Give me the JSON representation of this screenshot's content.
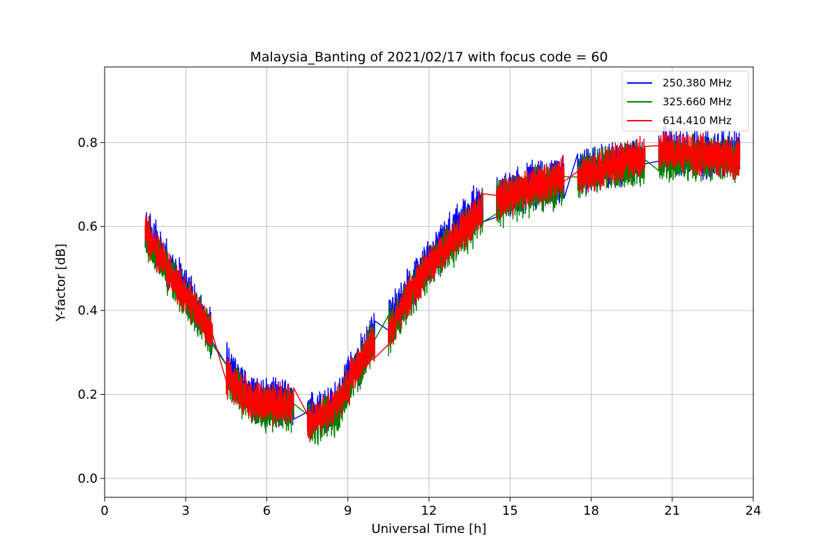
{
  "chart_data": {
    "type": "line",
    "title": "Malaysia_Banting of 2021/02/17 with focus code = 60",
    "xlabel": "Universal Time [h]",
    "ylabel": "Y-factor [dB]",
    "xlim": [
      0,
      24
    ],
    "ylim": [
      -0.045,
      0.98
    ],
    "xticks": [
      "0",
      "3",
      "6",
      "9",
      "12",
      "15",
      "18",
      "21",
      "24"
    ],
    "yticks": [
      "0.0",
      "0.2",
      "0.4",
      "0.6",
      "0.8"
    ],
    "grid": true,
    "legend_position": "top-right",
    "series": [
      {
        "name": "250.380 MHz",
        "color": "#0000ff",
        "noise": 0.045,
        "segments": [
          {
            "x": [
              1.5,
              2.5,
              3.5,
              4.0
            ],
            "y": [
              0.6,
              0.49,
              0.4,
              0.34
            ]
          },
          {
            "x": [
              4.5,
              5.5,
              7.0
            ],
            "y": [
              0.27,
              0.19,
              0.18
            ]
          },
          {
            "x": [
              7.5,
              8.5,
              10.0
            ],
            "y": [
              0.15,
              0.17,
              0.35
            ]
          },
          {
            "x": [
              10.5,
              12.0,
              14.0
            ],
            "y": [
              0.37,
              0.52,
              0.66
            ]
          },
          {
            "x": [
              14.5,
              16.0,
              17.0
            ],
            "y": [
              0.67,
              0.7,
              0.71
            ]
          },
          {
            "x": [
              17.5,
              19.0,
              20.0
            ],
            "y": [
              0.73,
              0.75,
              0.76
            ]
          },
          {
            "x": [
              20.5,
              22.0,
              23.5
            ],
            "y": [
              0.78,
              0.77,
              0.77
            ]
          }
        ]
      },
      {
        "name": "325.660 MHz",
        "color": "#008000",
        "noise": 0.045,
        "segments": [
          {
            "x": [
              1.5,
              2.5,
              3.5,
              4.0
            ],
            "y": [
              0.58,
              0.47,
              0.39,
              0.33
            ]
          },
          {
            "x": [
              4.5,
              5.5,
              7.0
            ],
            "y": [
              0.25,
              0.17,
              0.16
            ]
          },
          {
            "x": [
              7.5,
              8.5,
              10.0
            ],
            "y": [
              0.13,
              0.15,
              0.33
            ]
          },
          {
            "x": [
              10.5,
              12.0,
              14.0
            ],
            "y": [
              0.35,
              0.5,
              0.63
            ]
          },
          {
            "x": [
              14.5,
              16.0,
              17.0
            ],
            "y": [
              0.65,
              0.69,
              0.7
            ]
          },
          {
            "x": [
              17.5,
              19.0,
              20.0
            ],
            "y": [
              0.72,
              0.74,
              0.75
            ]
          },
          {
            "x": [
              20.5,
              22.0,
              23.5
            ],
            "y": [
              0.76,
              0.76,
              0.76
            ]
          }
        ]
      },
      {
        "name": "614.410 MHz",
        "color": "#ff0000",
        "noise": 0.04,
        "segments": [
          {
            "x": [
              1.5,
              2.5,
              3.5,
              4.0
            ],
            "y": [
              0.59,
              0.48,
              0.39,
              0.34
            ]
          },
          {
            "x": [
              4.5,
              5.5,
              7.0
            ],
            "y": [
              0.24,
              0.18,
              0.18
            ]
          },
          {
            "x": [
              7.5,
              8.5,
              10.0
            ],
            "y": [
              0.13,
              0.17,
              0.33
            ]
          },
          {
            "x": [
              10.5,
              12.0,
              14.0
            ],
            "y": [
              0.35,
              0.51,
              0.64
            ]
          },
          {
            "x": [
              14.5,
              16.0,
              17.0
            ],
            "y": [
              0.66,
              0.7,
              0.72
            ]
          },
          {
            "x": [
              17.5,
              19.0,
              20.0
            ],
            "y": [
              0.72,
              0.75,
              0.77
            ]
          },
          {
            "x": [
              20.5,
              22.0,
              23.5
            ],
            "y": [
              0.78,
              0.77,
              0.76
            ]
          }
        ]
      }
    ]
  }
}
